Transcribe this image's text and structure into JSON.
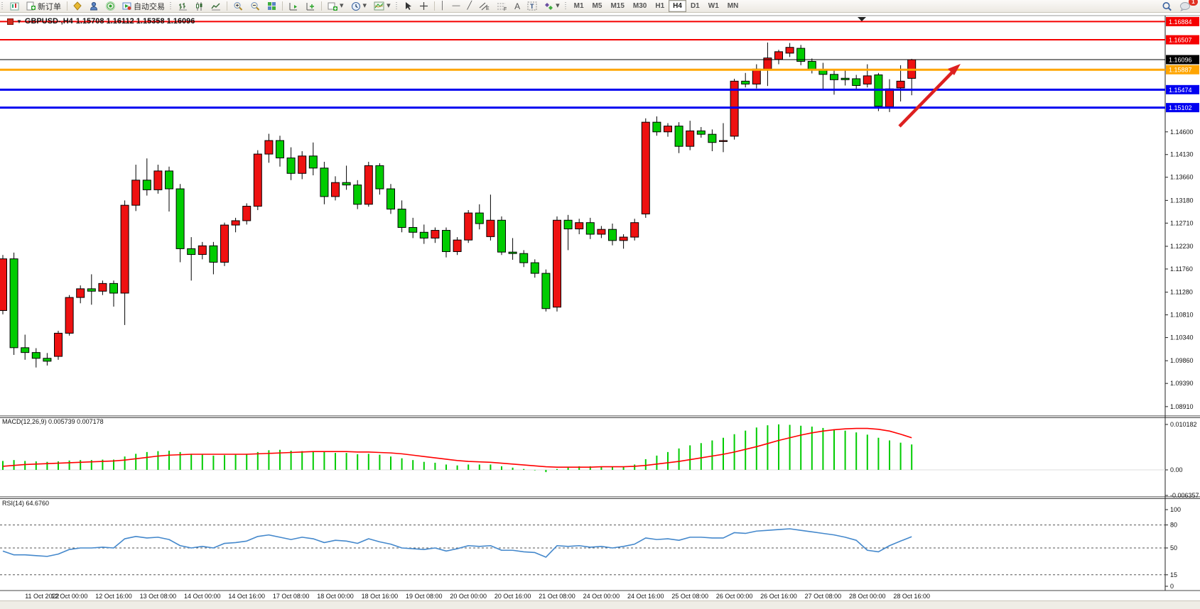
{
  "toolbar": {
    "new_order": "新订单",
    "autotrading": "自动交易",
    "timeframes": [
      "M1",
      "M5",
      "M15",
      "M30",
      "H1",
      "H4",
      "D1",
      "W1",
      "MN"
    ],
    "active_timeframe": "H4",
    "notification_badge": "1",
    "icons": {
      "chart_window": "mini-candles",
      "new_order": "document-green-plus",
      "symbols": "gold-diamond",
      "navigator": "blue-person",
      "signals": "green-broadcast",
      "autotrading": "play-red-dot",
      "bar_chart": "ohlc-bars",
      "candle_chart": "candlesticks",
      "line_chart": "zigzag-line",
      "zoom_in": "magnifier-plus",
      "zoom_out": "magnifier-minus",
      "tile_windows": "colored-grid",
      "indicator_window": "chart-panel",
      "new_chart": "chart-plus-caret",
      "periods": "clock-caret",
      "templates": "chart-lines-caret",
      "cursor": "pointer-arrow",
      "crosshair": "plus-cross",
      "vertical_line": "vertical-bar",
      "horizontal_line": "horizontal-bar",
      "trendline": "diagonal-line",
      "channel": "double-diagonal-E",
      "fibonacci": "diagonal-F",
      "text": "letter-A",
      "text_label": "boxed-T",
      "arrows": "shapes-caret",
      "search": "magnifier",
      "notifications": "speech-bubble"
    }
  },
  "chart": {
    "symbol_title": "GBPUSD-,H4",
    "ohlc_text": "1.15708 1.16112 1.15358 1.16096",
    "price_axis_ticks": [
      "1.14600",
      "1.14130",
      "1.13660",
      "1.13180",
      "1.12710",
      "1.12230",
      "1.11760",
      "1.11280",
      "1.10810",
      "1.10340",
      "1.09860",
      "1.09390",
      "1.08910"
    ],
    "hlines": [
      {
        "label": "1.16884",
        "value": 1.16884,
        "color": "#F50000",
        "width": 2
      },
      {
        "label": "1.16507",
        "value": 1.16507,
        "color": "#F50000",
        "width": 2
      },
      {
        "label": "1.16096",
        "value": 1.16096,
        "color": "#000000",
        "width": 1
      },
      {
        "label": "1.15887",
        "value": 1.15887,
        "color": "#FFA500",
        "width": 3
      },
      {
        "label": "1.15474",
        "value": 1.15474,
        "color": "#0000F0",
        "width": 3
      },
      {
        "label": "1.15102",
        "value": 1.15102,
        "color": "#0000F0",
        "width": 3
      }
    ],
    "x_axis_labels": [
      "11 Oct 2022",
      "12 Oct 00:00",
      "12 Oct 16:00",
      "13 Oct 08:00",
      "14 Oct 00:00",
      "14 Oct 16:00",
      "17 Oct 08:00",
      "18 Oct 00:00",
      "18 Oct 16:00",
      "19 Oct 08:00",
      "20 Oct 00:00",
      "20 Oct 16:00",
      "21 Oct 08:00",
      "24 Oct 00:00",
      "24 Oct 16:00",
      "25 Oct 08:00",
      "26 Oct 00:00",
      "26 Oct 16:00",
      "27 Oct 08:00",
      "28 Oct 00:00",
      "28 Oct 16:00"
    ],
    "arrow_color": "#DD2020"
  },
  "chart_data": {
    "type": "candlestick",
    "symbol": "GBPUSD",
    "timeframe": "H4",
    "title": "GBPUSD-,H4  1.15708 1.16112 1.15358 1.16096",
    "ylim": [
      1.0891,
      1.1712
    ],
    "grid": false,
    "colors": {
      "bull": "#EE1111",
      "bear": "#00CC00",
      "outline": "#000000",
      "macd_hist": "#00CC00",
      "macd_signal": "#FF0000",
      "rsi_line": "#4488CC"
    },
    "candles_format": "[open, high, low, close] per H4 bar, 11 Oct 2022 00:00 to 28 Oct 2022 20:00, weekends skipped",
    "candles": [
      [
        1.109,
        1.1205,
        1.1082,
        1.1197
      ],
      [
        1.1197,
        1.121,
        1.0998,
        1.1013
      ],
      [
        1.1013,
        1.104,
        1.0988,
        1.1003
      ],
      [
        1.1003,
        1.1012,
        1.0972,
        1.0991
      ],
      [
        1.0991,
        1.1002,
        1.0976,
        1.0985
      ],
      [
        1.0995,
        1.1048,
        1.0988,
        1.1043
      ],
      [
        1.1043,
        1.1122,
        1.1038,
        1.1117
      ],
      [
        1.1117,
        1.1142,
        1.1105,
        1.1135
      ],
      [
        1.1135,
        1.1165,
        1.1102,
        1.113
      ],
      [
        1.113,
        1.1152,
        1.1122,
        1.1146
      ],
      [
        1.1146,
        1.1152,
        1.1098,
        1.1126
      ],
      [
        1.1126,
        1.1318,
        1.106,
        1.1308
      ],
      [
        1.1308,
        1.1392,
        1.1296,
        1.136
      ],
      [
        1.136,
        1.1405,
        1.1328,
        1.134
      ],
      [
        1.134,
        1.1392,
        1.1332,
        1.1379
      ],
      [
        1.1379,
        1.1388,
        1.1295,
        1.1342
      ],
      [
        1.1342,
        1.1352,
        1.119,
        1.1218
      ],
      [
        1.1218,
        1.1242,
        1.1152,
        1.1206
      ],
      [
        1.1206,
        1.1232,
        1.1196,
        1.1224
      ],
      [
        1.1224,
        1.1232,
        1.1165,
        1.119
      ],
      [
        1.119,
        1.1272,
        1.1182,
        1.1267
      ],
      [
        1.1267,
        1.1282,
        1.1252,
        1.1276
      ],
      [
        1.1276,
        1.1312,
        1.1268,
        1.1306
      ],
      [
        1.1306,
        1.1422,
        1.1298,
        1.1414
      ],
      [
        1.1414,
        1.1456,
        1.1396,
        1.1442
      ],
      [
        1.1442,
        1.1452,
        1.1388,
        1.1406
      ],
      [
        1.1406,
        1.1428,
        1.136,
        1.1374
      ],
      [
        1.1374,
        1.142,
        1.1362,
        1.141
      ],
      [
        1.141,
        1.1438,
        1.137,
        1.1385
      ],
      [
        1.1385,
        1.1398,
        1.131,
        1.1326
      ],
      [
        1.1326,
        1.1368,
        1.1318,
        1.1355
      ],
      [
        1.1355,
        1.139,
        1.134,
        1.135
      ],
      [
        1.135,
        1.136,
        1.13,
        1.131
      ],
      [
        1.131,
        1.1398,
        1.1305,
        1.139
      ],
      [
        1.139,
        1.1395,
        1.133,
        1.1342
      ],
      [
        1.1342,
        1.1352,
        1.129,
        1.13
      ],
      [
        1.13,
        1.1318,
        1.1252,
        1.1262
      ],
      [
        1.1262,
        1.1282,
        1.124,
        1.1252
      ],
      [
        1.1252,
        1.1268,
        1.1228,
        1.124
      ],
      [
        1.124,
        1.1262,
        1.123,
        1.1256
      ],
      [
        1.1256,
        1.1262,
        1.12,
        1.1212
      ],
      [
        1.1212,
        1.1242,
        1.1205,
        1.1236
      ],
      [
        1.1236,
        1.1298,
        1.123,
        1.1292
      ],
      [
        1.1292,
        1.131,
        1.1258,
        1.127
      ],
      [
        1.1243,
        1.133,
        1.1235,
        1.1277
      ],
      [
        1.1277,
        1.1285,
        1.1205,
        1.1211
      ],
      [
        1.1211,
        1.124,
        1.1195,
        1.1208
      ],
      [
        1.1208,
        1.1215,
        1.118,
        1.1189
      ],
      [
        1.1189,
        1.1196,
        1.1158,
        1.1167
      ],
      [
        1.1167,
        1.1175,
        1.1088,
        1.1094
      ],
      [
        1.1097,
        1.1285,
        1.1088,
        1.1277
      ],
      [
        1.1277,
        1.1288,
        1.1215,
        1.1259
      ],
      [
        1.1259,
        1.128,
        1.1248,
        1.1272
      ],
      [
        1.1272,
        1.1282,
        1.1238,
        1.1248
      ],
      [
        1.1248,
        1.1265,
        1.124,
        1.1258
      ],
      [
        1.1258,
        1.127,
        1.1225,
        1.1235
      ],
      [
        1.1235,
        1.1248,
        1.1218,
        1.1242
      ],
      [
        1.1242,
        1.128,
        1.1235,
        1.1272
      ],
      [
        1.129,
        1.1488,
        1.1282,
        1.148
      ],
      [
        1.148,
        1.1492,
        1.1452,
        1.146
      ],
      [
        1.146,
        1.1478,
        1.145,
        1.1472
      ],
      [
        1.1472,
        1.148,
        1.1416,
        1.143
      ],
      [
        1.143,
        1.1483,
        1.1422,
        1.1462
      ],
      [
        1.1462,
        1.147,
        1.1448,
        1.1455
      ],
      [
        1.1455,
        1.1465,
        1.142,
        1.1438
      ],
      [
        1.144,
        1.1478,
        1.1418,
        1.1442
      ],
      [
        1.1451,
        1.157,
        1.1444,
        1.1565
      ],
      [
        1.1565,
        1.1582,
        1.1552,
        1.1559
      ],
      [
        1.1559,
        1.16,
        1.155,
        1.159
      ],
      [
        1.159,
        1.1645,
        1.1555,
        1.1613
      ],
      [
        1.161,
        1.163,
        1.16,
        1.1626
      ],
      [
        1.1623,
        1.1644,
        1.1615,
        1.1635
      ],
      [
        1.1633,
        1.164,
        1.1598,
        1.1606
      ],
      [
        1.1606,
        1.1612,
        1.1581,
        1.1589
      ],
      [
        1.1589,
        1.1603,
        1.1549,
        1.1579
      ],
      [
        1.1579,
        1.159,
        1.1537,
        1.1568
      ],
      [
        1.1571,
        1.159,
        1.1556,
        1.1568
      ],
      [
        1.157,
        1.1578,
        1.1546,
        1.1556
      ],
      [
        1.1559,
        1.16,
        1.1552,
        1.1576
      ],
      [
        1.1578,
        1.1582,
        1.1503,
        1.1513
      ],
      [
        1.1512,
        1.1569,
        1.1501,
        1.1549
      ],
      [
        1.1551,
        1.1598,
        1.1523,
        1.1565
      ],
      [
        1.15708,
        1.16112,
        1.15358,
        1.16096
      ]
    ],
    "macd": {
      "label": "MACD(12,26,9)",
      "main_value": "0.005739",
      "signal_value": "0.007178",
      "axis_labels": [
        "0.010182",
        "0.00",
        "-0.006357"
      ],
      "axis_values": [
        0.010182,
        0.0,
        -0.006357
      ],
      "histogram": [
        0.002,
        0.0022,
        0.002,
        0.0019,
        0.0018,
        0.0019,
        0.0021,
        0.0022,
        0.0022,
        0.0023,
        0.0023,
        0.003,
        0.0036,
        0.004,
        0.0042,
        0.0043,
        0.004,
        0.0036,
        0.0034,
        0.0032,
        0.0033,
        0.0034,
        0.0036,
        0.004,
        0.0044,
        0.0045,
        0.0043,
        0.0042,
        0.0042,
        0.004,
        0.0038,
        0.0038,
        0.0035,
        0.0036,
        0.0034,
        0.003,
        0.0026,
        0.0022,
        0.0018,
        0.0016,
        0.0012,
        0.001,
        0.0012,
        0.0012,
        0.0012,
        0.0008,
        0.0005,
        0.0002,
        -0.0001,
        -0.0005,
        0.0002,
        0.0006,
        0.0008,
        0.0008,
        0.0008,
        0.0007,
        0.0008,
        0.0012,
        0.0024,
        0.0032,
        0.004,
        0.0048,
        0.0055,
        0.006,
        0.0066,
        0.0072,
        0.008,
        0.0088,
        0.0095,
        0.01,
        0.0102,
        0.0101,
        0.0099,
        0.0097,
        0.0094,
        0.0091,
        0.0088,
        0.0084,
        0.0079,
        0.0072,
        0.0066,
        0.0061,
        0.0057
      ],
      "signal": [
        0.0008,
        0.001,
        0.0012,
        0.0013,
        0.0014,
        0.0015,
        0.0016,
        0.0017,
        0.0018,
        0.0019,
        0.002,
        0.0022,
        0.0025,
        0.0028,
        0.0031,
        0.0033,
        0.0034,
        0.0035,
        0.0035,
        0.0035,
        0.0035,
        0.0035,
        0.0035,
        0.0036,
        0.0037,
        0.0038,
        0.0039,
        0.004,
        0.0041,
        0.0041,
        0.0041,
        0.0041,
        0.004,
        0.004,
        0.0039,
        0.0038,
        0.0036,
        0.0033,
        0.003,
        0.0027,
        0.0024,
        0.0021,
        0.0019,
        0.0018,
        0.0017,
        0.0015,
        0.0013,
        0.0011,
        0.0009,
        0.0007,
        0.0006,
        0.0006,
        0.0006,
        0.0006,
        0.0007,
        0.0007,
        0.0007,
        0.0008,
        0.001,
        0.0013,
        0.0016,
        0.0019,
        0.0023,
        0.0027,
        0.0031,
        0.0035,
        0.004,
        0.0046,
        0.0052,
        0.0059,
        0.0066,
        0.0072,
        0.0078,
        0.0083,
        0.0087,
        0.009,
        0.0092,
        0.0093,
        0.0093,
        0.0091,
        0.0087,
        0.008,
        0.0072
      ]
    },
    "rsi": {
      "label": "RSI(14)",
      "value": "64.6760",
      "axis_labels": [
        "100",
        "80",
        "50",
        "15",
        "0"
      ],
      "axis_values": [
        100,
        80,
        50,
        15,
        0
      ],
      "levels": [
        80,
        50,
        15
      ],
      "series": [
        46,
        41,
        41,
        40,
        39,
        42,
        48,
        50,
        50,
        51,
        50,
        62,
        65,
        63,
        64,
        61,
        53,
        50,
        52,
        50,
        56,
        57,
        59,
        65,
        67,
        64,
        61,
        64,
        62,
        57,
        60,
        59,
        56,
        62,
        58,
        55,
        50,
        49,
        48,
        50,
        46,
        49,
        53,
        52,
        53,
        47,
        47,
        45,
        44,
        38,
        53,
        52,
        53,
        51,
        52,
        50,
        52,
        55,
        63,
        61,
        62,
        60,
        64,
        64,
        63,
        63,
        70,
        69,
        72,
        73,
        74,
        75,
        73,
        71,
        69,
        67,
        64,
        60,
        47,
        45,
        53,
        59,
        64.68
      ]
    }
  }
}
